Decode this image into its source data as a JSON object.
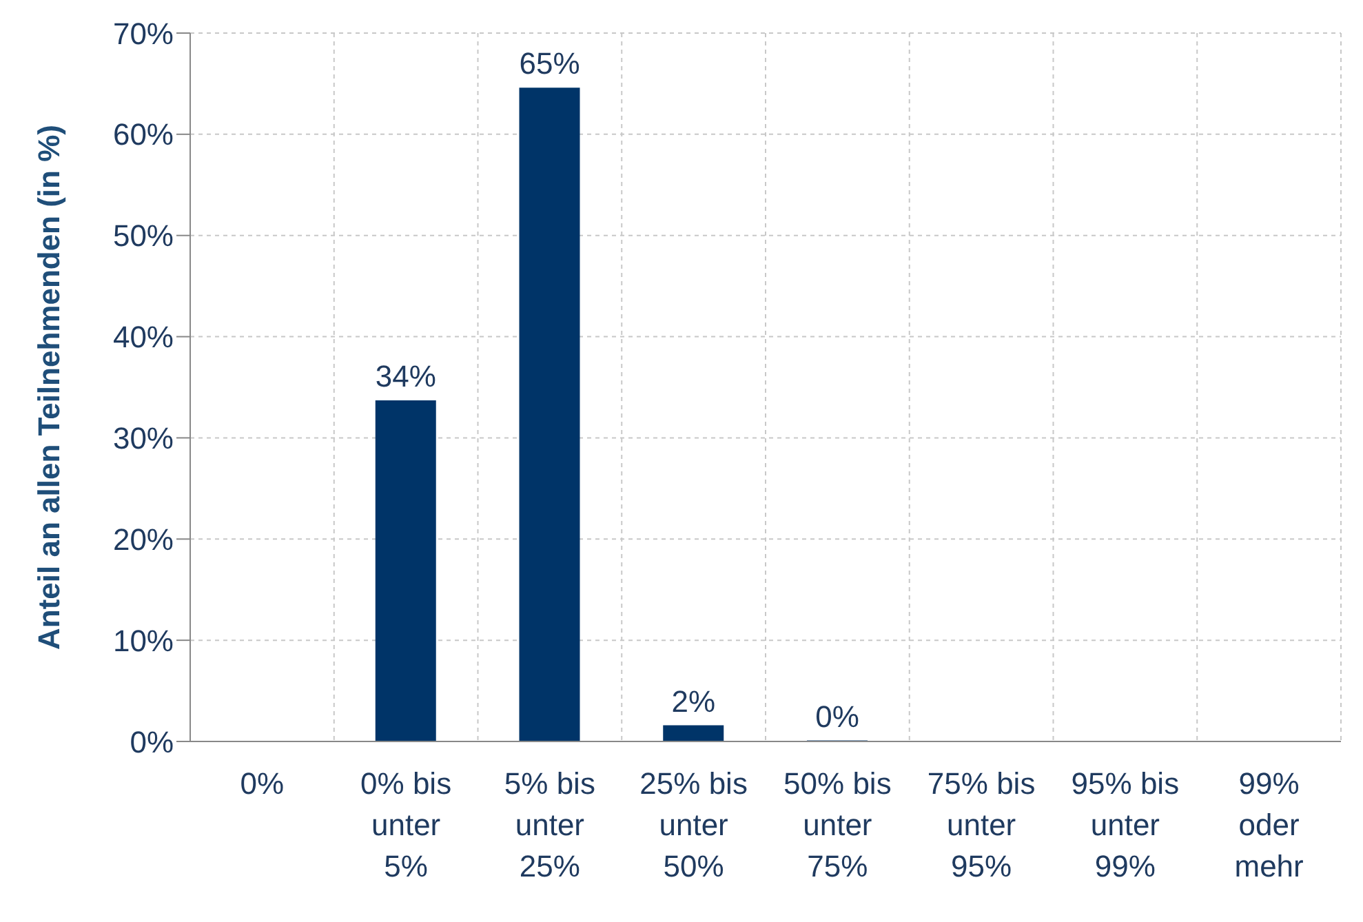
{
  "chart_data": {
    "type": "bar",
    "ylabel": "Anteil an allen Teilnehmenden (in %)",
    "categories": [
      "0%",
      "0% bis unter 5%",
      "5% bis unter 25%",
      "25% bis unter 50%",
      "50% bis unter 75%",
      "75% bis unter 95%",
      "95% bis unter 99%",
      "99% oder mehr"
    ],
    "values": [
      0,
      33.7,
      64.6,
      1.6,
      0.1,
      0,
      0,
      0
    ],
    "value_labels": [
      null,
      "34%",
      "65%",
      "2%",
      "0%",
      null,
      null,
      null
    ],
    "color": "#003468",
    "ylim": [
      0,
      70
    ],
    "yticks": [
      {
        "value": 0,
        "label": "0%"
      },
      {
        "value": 10,
        "label": "10%"
      },
      {
        "value": 20,
        "label": "20%"
      },
      {
        "value": 30,
        "label": "30%"
      },
      {
        "value": 40,
        "label": "40%"
      },
      {
        "value": 50,
        "label": "50%"
      },
      {
        "value": 60,
        "label": "60%"
      },
      {
        "value": 70,
        "label": "70%"
      }
    ],
    "grid": true
  }
}
